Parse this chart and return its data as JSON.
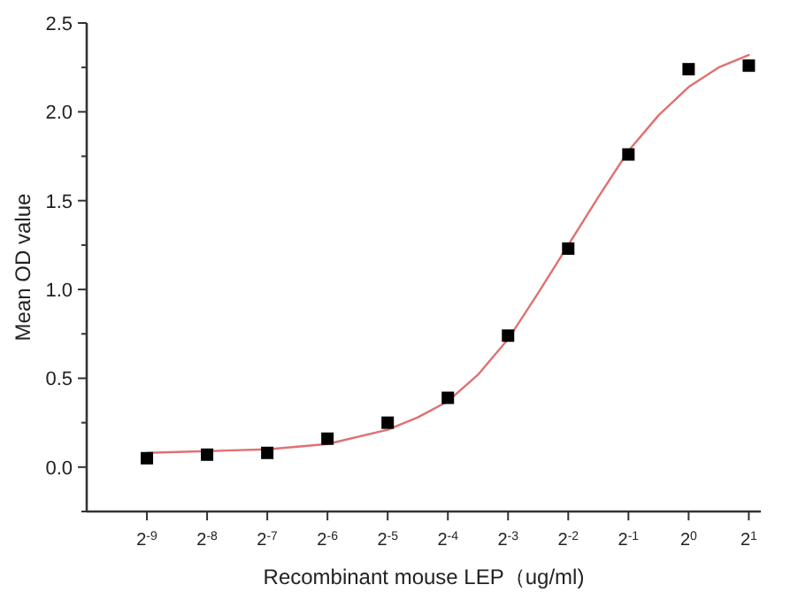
{
  "chart_data": {
    "type": "scatter",
    "xlabel": "Recombinant mouse LEP（ug/ml)",
    "ylabel": "Mean OD value",
    "log": "x",
    "xlim": [
      0.0009765625,
      2.297
    ],
    "xticks": [
      {
        "value": 0.001953125,
        "label": "2$^{-9}$"
      },
      {
        "value": 0.00390625,
        "label": "2$^{-8}$"
      },
      {
        "value": 0.0078125,
        "label": "2$^{-7}$"
      },
      {
        "value": 0.015625,
        "label": "2$^{-6}$"
      },
      {
        "value": 0.03125,
        "label": "2$^{-5}$"
      },
      {
        "value": 0.0625,
        "label": "2$^{-4}$"
      },
      {
        "value": 0.125,
        "label": "2$^{-3}$"
      },
      {
        "value": 0.25,
        "label": "2$^{-2}$"
      },
      {
        "value": 0.5,
        "label": "2$^{-1}$"
      },
      {
        "value": 1,
        "label": "2$^{0}$"
      },
      {
        "value": 2,
        "label": "2$^{1}$"
      }
    ],
    "ylim": [
      -0.25,
      2.5
    ],
    "yticks": [
      {
        "value": -0.25,
        "label": null
      },
      {
        "value": 0,
        "label": "0.0"
      },
      {
        "value": 0.25,
        "label": null
      },
      {
        "value": 0.5,
        "label": "0.5"
      },
      {
        "value": 0.75,
        "label": null
      },
      {
        "value": 1,
        "label": "1.0"
      },
      {
        "value": 1.25,
        "label": null
      },
      {
        "value": 1.5,
        "label": "1.5"
      },
      {
        "value": 1.75,
        "label": null
      },
      {
        "value": 2,
        "label": "2.0"
      },
      {
        "value": 2.25,
        "label": null
      },
      {
        "value": 2.5,
        "label": "2.5"
      }
    ],
    "grid": false,
    "series": [
      {
        "type": "line",
        "color": "#e07070",
        "line_style": "solid",
        "marker": "none",
        "x": [
          0.001953125,
          0.00390625,
          0.0078125,
          0.015625,
          0.03125,
          0.0442,
          0.0625,
          0.0884,
          0.125,
          0.1768,
          0.25,
          0.3536,
          0.5,
          0.7071,
          1,
          1.4142,
          2
        ],
        "values": [
          0.08,
          0.09,
          0.1,
          0.13,
          0.21,
          0.28,
          0.37,
          0.52,
          0.72,
          0.98,
          1.25,
          1.52,
          1.78,
          1.98,
          2.14,
          2.25,
          2.32
        ]
      },
      {
        "color": "#000000",
        "marker": "square",
        "x": [
          0.001953125,
          0.00390625,
          0.0078125,
          0.015625,
          0.03125,
          0.0625,
          0.125,
          0.25,
          0.5,
          1,
          2
        ],
        "values": [
          0.05,
          0.07,
          0.08,
          0.16,
          0.25,
          0.39,
          0.74,
          1.23,
          1.76,
          2.24,
          2.26
        ]
      }
    ]
  }
}
